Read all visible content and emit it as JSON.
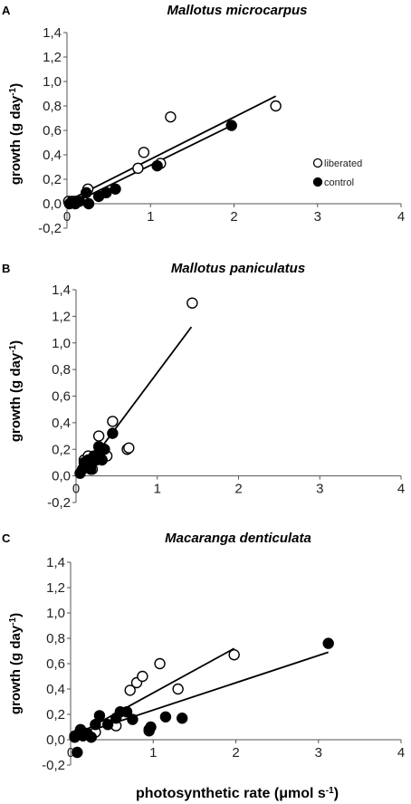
{
  "xlabel_main": "photosynthetic rate (μmol s",
  "xlabel_sup": "-1",
  "xlabel_close": ")",
  "legend": {
    "liberated": "liberated",
    "control": "control",
    "liberated_color": "#ffffff",
    "control_color": "#000000"
  },
  "chart_data": [
    {
      "type": "scatter",
      "panel": "A",
      "title": "Mallotus microcarpus",
      "ylabel": "growth (g day",
      "ylabel_sup": "-1",
      "ylabel_close": ")",
      "xlim": [
        0,
        4
      ],
      "ylim": [
        -0.2,
        1.4
      ],
      "xticks": [
        "0",
        "1",
        "2",
        "3",
        "4"
      ],
      "yticks": [
        "-0,2",
        "0,0",
        "0,2",
        "0,4",
        "0,6",
        "0,8",
        "1,0",
        "1,2",
        "1,4"
      ],
      "series": [
        {
          "name": "liberated",
          "marker": "open-circle",
          "x": [
            0.02,
            0.1,
            0.25,
            0.85,
            0.92,
            1.12,
            1.24,
            2.5
          ],
          "y": [
            0.02,
            0.02,
            0.12,
            0.29,
            0.42,
            0.33,
            0.71,
            0.8
          ]
        },
        {
          "name": "control",
          "marker": "filled-circle",
          "x": [
            0.03,
            0.06,
            0.1,
            0.15,
            0.23,
            0.26,
            0.38,
            0.47,
            0.58,
            1.08,
            1.97
          ],
          "y": [
            0.0,
            0.02,
            0.0,
            0.02,
            0.09,
            0.0,
            0.06,
            0.09,
            0.12,
            0.31,
            0.64
          ]
        }
      ],
      "trendlines": [
        {
          "x": [
            0.03,
            2.5
          ],
          "y": [
            0.03,
            0.88
          ]
        },
        {
          "x": [
            0.03,
            2.0
          ],
          "y": [
            -0.01,
            0.65
          ]
        }
      ]
    },
    {
      "type": "scatter",
      "panel": "B",
      "title": "Mallotus paniculatus",
      "ylabel": "growth (g day",
      "ylabel_sup": "-1",
      "ylabel_close": ")",
      "xlim": [
        0,
        4
      ],
      "ylim": [
        -0.2,
        1.4
      ],
      "xticks": [
        "0",
        "1",
        "2",
        "3",
        "4"
      ],
      "yticks": [
        "-0,2",
        "0,0",
        "0,2",
        "0,4",
        "0,6",
        "0,8",
        "1,0",
        "1,2",
        "1,4"
      ],
      "series": [
        {
          "name": "liberated",
          "marker": "open-circle",
          "x": [
            0.1,
            0.15,
            0.2,
            0.23,
            0.28,
            0.32,
            0.38,
            0.45,
            0.63,
            0.65,
            1.43
          ],
          "y": [
            0.12,
            0.15,
            0.05,
            0.15,
            0.3,
            0.2,
            0.15,
            0.41,
            0.2,
            0.21,
            1.3
          ]
        },
        {
          "name": "control",
          "marker": "filled-circle",
          "x": [
            0.05,
            0.08,
            0.1,
            0.12,
            0.15,
            0.18,
            0.2,
            0.22,
            0.25,
            0.28,
            0.3,
            0.32,
            0.35,
            0.45
          ],
          "y": [
            0.02,
            0.05,
            0.1,
            0.08,
            0.12,
            0.05,
            0.1,
            0.15,
            0.12,
            0.22,
            0.18,
            0.12,
            0.2,
            0.32
          ]
        }
      ],
      "trendlines": [
        {
          "x": [
            0.05,
            1.42
          ],
          "y": [
            0.0,
            1.12
          ]
        }
      ]
    },
    {
      "type": "scatter",
      "panel": "C",
      "title": "Macaranga denticulata",
      "ylabel": "growth (g day",
      "ylabel_sup": "-1",
      "ylabel_close": ")",
      "xlim": [
        0,
        4
      ],
      "ylim": [
        -0.2,
        1.4
      ],
      "xticks": [
        "0",
        "1",
        "2",
        "3",
        "4"
      ],
      "yticks": [
        "-0,2",
        "0,0",
        "0,2",
        "0,4",
        "0,6",
        "0,8",
        "1,0",
        "1,2",
        "1,4"
      ],
      "series": [
        {
          "name": "liberated",
          "marker": "open-circle",
          "x": [
            0.05,
            0.3,
            0.55,
            0.72,
            0.8,
            0.87,
            0.95,
            1.08,
            1.3,
            1.98
          ],
          "y": [
            0.03,
            0.06,
            0.11,
            0.39,
            0.45,
            0.5,
            0.07,
            0.6,
            0.4,
            0.67
          ]
        },
        {
          "name": "control",
          "marker": "filled-circle",
          "x": [
            0.05,
            0.08,
            0.1,
            0.12,
            0.15,
            0.2,
            0.25,
            0.3,
            0.35,
            0.45,
            0.55,
            0.6,
            0.68,
            0.75,
            0.95,
            0.97,
            1.15,
            1.35,
            3.12
          ],
          "y": [
            0.02,
            -0.1,
            0.05,
            0.08,
            0.03,
            0.05,
            0.02,
            0.12,
            0.19,
            0.12,
            0.17,
            0.22,
            0.22,
            0.16,
            0.08,
            0.1,
            0.18,
            0.17,
            0.76
          ]
        }
      ],
      "trendlines": [
        {
          "x": [
            0.05,
            1.98
          ],
          "y": [
            0.03,
            0.72
          ]
        },
        {
          "x": [
            0.05,
            3.12
          ],
          "y": [
            0.03,
            0.69
          ]
        }
      ]
    }
  ]
}
